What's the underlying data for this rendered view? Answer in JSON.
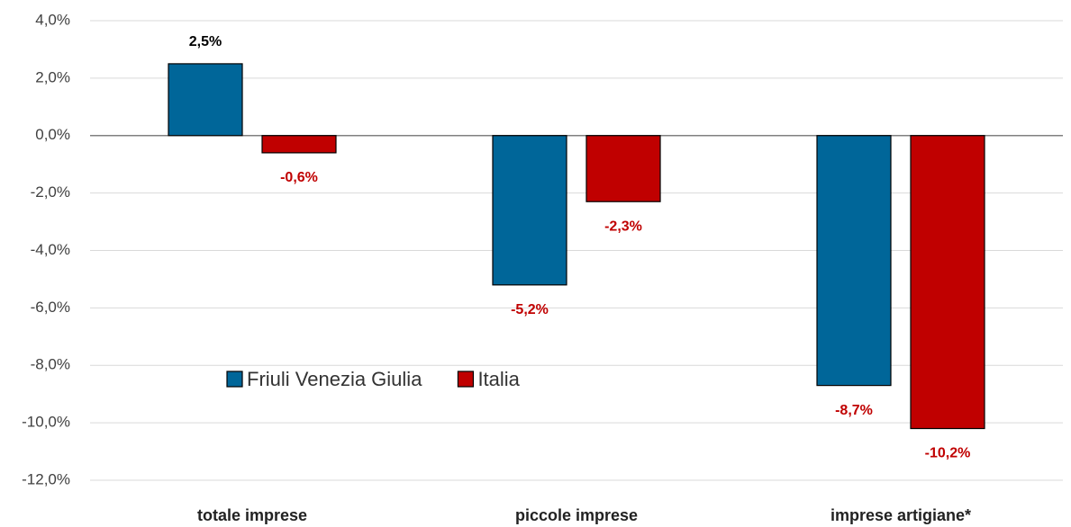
{
  "chart_data": {
    "type": "bar",
    "categories": [
      "totale imprese",
      "piccole imprese",
      "imprese artigiane*"
    ],
    "series": [
      {
        "name": "Friuli Venezia Giulia",
        "color": "#006699",
        "values": [
          2.5,
          -5.2,
          -8.7
        ],
        "value_labels": [
          "2,5%",
          "-5,2%",
          "-8,7%"
        ]
      },
      {
        "name": "Italia",
        "color": "#c00000",
        "values": [
          -0.6,
          -2.3,
          -10.2
        ],
        "value_labels": [
          "-0,6%",
          "-2,3%",
          "-10,2%"
        ]
      }
    ],
    "ylim": [
      -12,
      4
    ],
    "yticks": [
      {
        "value": 4,
        "label": "4,0%"
      },
      {
        "value": 2,
        "label": "2,0%"
      },
      {
        "value": 0,
        "label": "0,0%"
      },
      {
        "value": -2,
        "label": "-2,0%"
      },
      {
        "value": -4,
        "label": "-4,0%"
      },
      {
        "value": -6,
        "label": "-6,0%"
      },
      {
        "value": -8,
        "label": "-8,0%"
      },
      {
        "value": -10,
        "label": "-10,0%"
      },
      {
        "value": -12,
        "label": "-12,0%"
      }
    ],
    "grid": true
  }
}
